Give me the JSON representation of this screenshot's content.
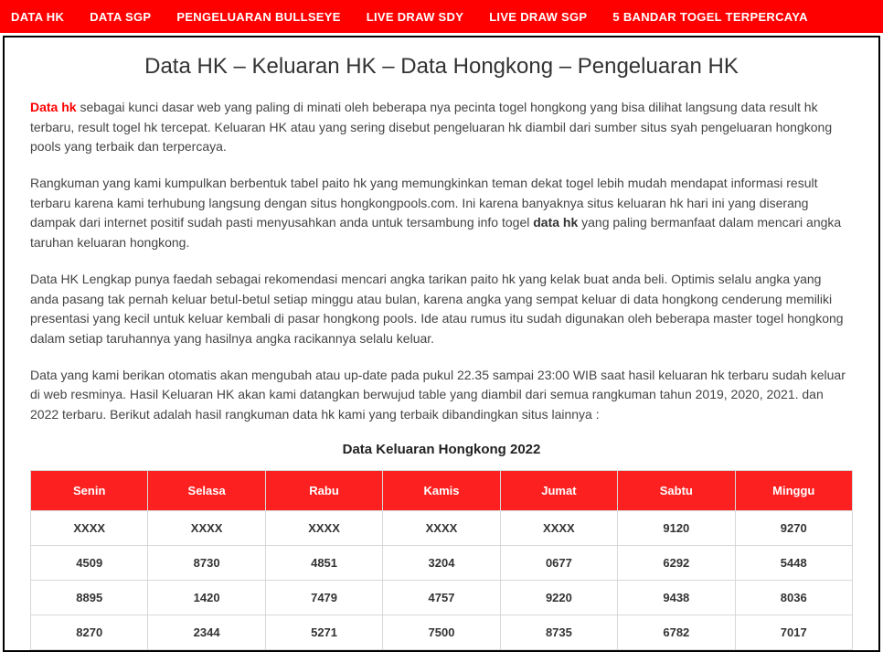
{
  "nav": {
    "items": [
      "DATA HK",
      "DATA SGP",
      "PENGELUARAN BULLSEYE",
      "LIVE DRAW SDY",
      "LIVE DRAW SGP",
      "5 BANDAR TOGEL TERPERCAYA"
    ]
  },
  "page": {
    "title": "Data HK – Keluaran HK – Data Hongkong – Pengeluaran HK"
  },
  "paragraphs": {
    "p1_lead": "Data hk",
    "p1_rest": " sebagai kunci dasar web yang paling di minati oleh beberapa nya pecinta togel hongkong yang bisa dilihat langsung data result hk terbaru, result togel hk tercepat. Keluaran HK atau yang sering disebut pengeluaran hk diambil dari sumber situs syah pengeluaran hongkong pools yang terbaik dan terpercaya.",
    "p2_a": "Rangkuman yang kami kumpulkan berbentuk tabel paito hk yang memungkinkan teman dekat togel lebih mudah mendapat informasi result terbaru karena kami terhubung langsung dengan situs hongkongpools.com. Ini karena banyaknya situs keluaran hk hari ini yang diserang dampak dari internet positif sudah pasti menyusahkan anda untuk tersambung info togel ",
    "p2_bold": "data hk",
    "p2_b": " yang paling bermanfaat dalam mencari angka taruhan keluaran hongkong.",
    "p3": "Data HK Lengkap punya faedah sebagai rekomendasi mencari angka tarikan paito hk yang kelak buat anda beli. Optimis selalu angka yang anda pasang tak pernah keluar betul-betul setiap minggu atau bulan, karena angka yang sempat keluar di data hongkong cenderung memiliki presentasi yang kecil untuk keluar kembali di pasar hongkong pools. Ide atau rumus itu sudah digunakan oleh beberapa master togel hongkong dalam setiap taruhannya yang hasilnya angka racikannya selalu keluar.",
    "p4": "Data yang kami berikan otomatis akan mengubah atau up-date pada pukul 22.35 sampai 23:00 WIB saat hasil keluaran hk terbaru sudah keluar di web resminya. Hasil Keluaran HK akan kami datangkan berwujud table yang diambil dari semua rangkuman tahun 2019, 2020, 2021. dan 2022 terbaru. Berikut adalah hasil rangkuman data hk kami yang terbaik dibandingkan situs lainnya :"
  },
  "table": {
    "title": "Data Keluaran Hongkong 2022",
    "columns": [
      "Senin",
      "Selasa",
      "Rabu",
      "Kamis",
      "Jumat",
      "Sabtu",
      "Minggu"
    ],
    "rows": [
      [
        "XXXX",
        "XXXX",
        "XXXX",
        "XXXX",
        "XXXX",
        "9120",
        "9270"
      ],
      [
        "4509",
        "8730",
        "4851",
        "3204",
        "0677",
        "6292",
        "5448"
      ],
      [
        "8895",
        "1420",
        "7479",
        "4757",
        "9220",
        "9438",
        "8036"
      ],
      [
        "8270",
        "2344",
        "5271",
        "7500",
        "8735",
        "6782",
        "7017"
      ]
    ],
    "header_bg": "#fc2020",
    "header_color": "#ffffff",
    "border_color": "#d8d8d8",
    "cell_color": "#333333"
  },
  "colors": {
    "navbar_bg": "#ff0000",
    "navbar_text": "#ffffff",
    "accent_red": "#ff0000",
    "body_text": "#444444",
    "page_bg": "#ffffff",
    "outer_border": "#000000"
  }
}
